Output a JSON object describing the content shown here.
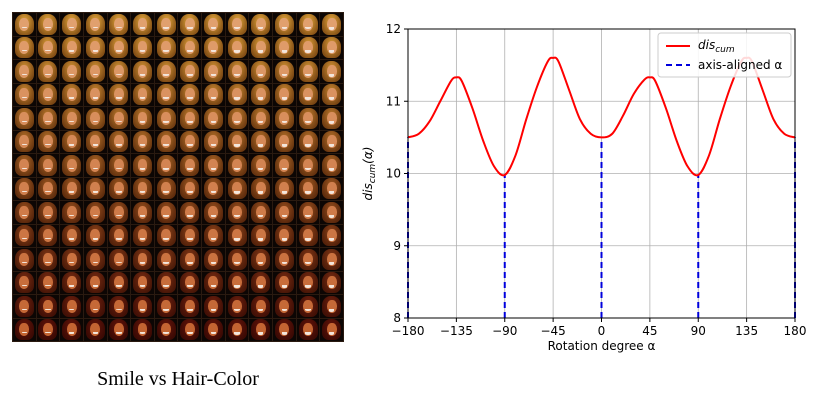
{
  "left_panel": {
    "caption": "Smile vs Hair-Color",
    "grid_rows": 14,
    "grid_cols": 14
  },
  "chart_data": {
    "type": "line",
    "xlabel": "Rotation degree α",
    "ylabel": "dis_cum(α)",
    "ylabel_main": "dis",
    "ylabel_sub": "cum",
    "ylabel_suffix": "(α)",
    "xlim": [
      -180,
      180
    ],
    "ylim": [
      8,
      12
    ],
    "xticks": [
      -180,
      -135,
      -90,
      -45,
      0,
      45,
      90,
      135,
      180
    ],
    "xtick_labels": [
      "−180",
      "−135",
      "−90",
      "−45",
      "0",
      "45",
      "90",
      "135",
      "180"
    ],
    "yticks": [
      8,
      9,
      10,
      11,
      12
    ],
    "grid": true,
    "legend_position": "top-right",
    "series": [
      {
        "name": "dis_cum",
        "legend_main": "dis",
        "legend_sub": "cum",
        "color": "#ff0000",
        "style": "solid",
        "x": [
          -180,
          -170,
          -160,
          -150,
          -140,
          -135,
          -130,
          -120,
          -110,
          -100,
          -90,
          -80,
          -70,
          -60,
          -50,
          -45,
          -40,
          -30,
          -20,
          -10,
          0,
          10,
          20,
          30,
          40,
          45,
          50,
          60,
          70,
          80,
          90,
          100,
          110,
          120,
          130,
          135,
          140,
          150,
          160,
          170,
          180
        ],
        "y": [
          10.5,
          10.55,
          10.72,
          11.0,
          11.28,
          11.33,
          11.28,
          10.9,
          10.45,
          10.1,
          9.98,
          10.25,
          10.75,
          11.2,
          11.55,
          11.6,
          11.55,
          11.15,
          10.75,
          10.55,
          10.5,
          10.55,
          10.8,
          11.1,
          11.3,
          11.33,
          11.28,
          10.9,
          10.45,
          10.1,
          9.98,
          10.25,
          10.75,
          11.2,
          11.55,
          11.6,
          11.55,
          11.15,
          10.75,
          10.55,
          10.5
        ]
      },
      {
        "name": "axis-aligned α",
        "color": "#0000dd",
        "style": "dashed",
        "vlines": [
          -180,
          -90,
          0,
          90,
          180
        ]
      }
    ]
  }
}
